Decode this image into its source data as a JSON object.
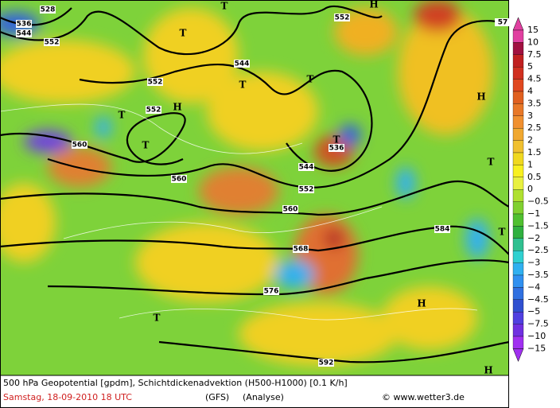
{
  "colorbar": {
    "labels": [
      "15",
      "10",
      "7.5",
      "5",
      "4.5",
      "4",
      "3.5",
      "3",
      "2.5",
      "2",
      "1.5",
      "1",
      "0.5",
      "0",
      "−0.5",
      "−1",
      "−1.5",
      "−2",
      "−2.5",
      "−3",
      "−3.5",
      "−4",
      "−4.5",
      "−5",
      "−7.5",
      "−10",
      "−15"
    ]
  },
  "contour_labels": [
    "528",
    "536",
    "544",
    "552",
    "552",
    "552",
    "544",
    "552",
    "560",
    "560",
    "544",
    "552",
    "536",
    "560",
    "568",
    "576",
    "584",
    "592",
    "57"
  ],
  "pressure_centers": [
    "H",
    "H",
    "H",
    "H",
    "H",
    "T",
    "T",
    "T",
    "T",
    "T",
    "T",
    "T",
    "T",
    "T",
    "T"
  ],
  "footer": {
    "title": "500 hPa Geopotential [gpdm], Schichtdickenadvektion (H500-H1000) [0.1 K/h]",
    "date": "Samstag, 18-09-2010  18 UTC",
    "model": "(GFS)",
    "run": "(Analyse)",
    "source": "© www.wetter3.de"
  }
}
